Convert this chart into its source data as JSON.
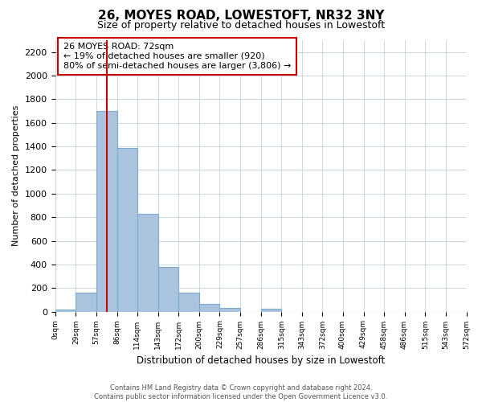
{
  "title": "26, MOYES ROAD, LOWESTOFT, NR32 3NY",
  "subtitle": "Size of property relative to detached houses in Lowestoft",
  "xlabel": "Distribution of detached houses by size in Lowestoft",
  "ylabel": "Number of detached properties",
  "bar_edges": [
    0,
    29,
    57,
    86,
    114,
    143,
    172,
    200,
    229,
    257,
    286,
    315,
    343,
    372,
    400,
    429,
    458,
    486,
    515,
    543,
    572
  ],
  "bar_heights": [
    15,
    160,
    1700,
    1390,
    830,
    380,
    160,
    65,
    30,
    0,
    25,
    0,
    0,
    0,
    0,
    0,
    0,
    0,
    0,
    0
  ],
  "bar_color": "#aac4e0",
  "bar_edgecolor": "#7aaac8",
  "property_line_x": 72,
  "property_line_color": "#cc0000",
  "annotation_text_line1": "26 MOYES ROAD: 72sqm",
  "annotation_text_line2": "← 19% of detached houses are smaller (920)",
  "annotation_text_line3": "80% of semi-detached houses are larger (3,806) →",
  "ylim": [
    0,
    2300
  ],
  "yticks": [
    0,
    200,
    400,
    600,
    800,
    1000,
    1200,
    1400,
    1600,
    1800,
    2000,
    2200
  ],
  "tick_labels": [
    "0sqm",
    "29sqm",
    "57sqm",
    "86sqm",
    "114sqm",
    "143sqm",
    "172sqm",
    "200sqm",
    "229sqm",
    "257sqm",
    "286sqm",
    "315sqm",
    "343sqm",
    "372sqm",
    "400sqm",
    "429sqm",
    "458sqm",
    "486sqm",
    "515sqm",
    "543sqm",
    "572sqm"
  ],
  "footer": "Contains HM Land Registry data © Crown copyright and database right 2024.\nContains public sector information licensed under the Open Government Licence v3.0.",
  "box_edgecolor": "#cc0000",
  "background_color": "#ffffff",
  "grid_color": "#c8d8e8"
}
